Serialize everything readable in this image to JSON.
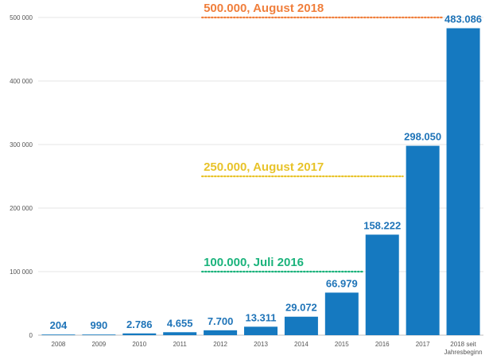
{
  "chart_data": {
    "type": "bar",
    "categories": [
      "2008",
      "2009",
      "2010",
      "2011",
      "2012",
      "2013",
      "2014",
      "2015",
      "2016",
      "2017",
      "2018 seit Jahresbeginn"
    ],
    "values": [
      204,
      990,
      2786,
      4655,
      7700,
      13311,
      29072,
      66979,
      158222,
      298050,
      483086
    ],
    "data_labels": [
      "204",
      "990",
      "2.786",
      "4.655",
      "7.700",
      "13.311",
      "29.072",
      "66.979",
      "158.222",
      "298.050",
      "483.086"
    ],
    "yticks": [
      0,
      100000,
      200000,
      300000,
      400000,
      500000
    ],
    "ytick_labels": [
      "0",
      "100 000",
      "200 000",
      "300 000",
      "400 000",
      "500 000"
    ],
    "ylim": [
      0,
      500000
    ],
    "bar_color": "#1579c0",
    "grid": true,
    "title": "",
    "xlabel": "",
    "ylabel": "",
    "annotations": [
      {
        "label": "500.000, August 2018",
        "value": 500000,
        "from_category": 4,
        "to_category": 10,
        "color": "#f07f3c"
      },
      {
        "label": "250.000, August 2017",
        "value": 250000,
        "from_category": 4,
        "to_category": 9,
        "color": "#e8c32a"
      },
      {
        "label": "100.000, Juli 2016",
        "value": 100000,
        "from_category": 4,
        "to_category": 8,
        "color": "#1bb37c"
      }
    ]
  }
}
